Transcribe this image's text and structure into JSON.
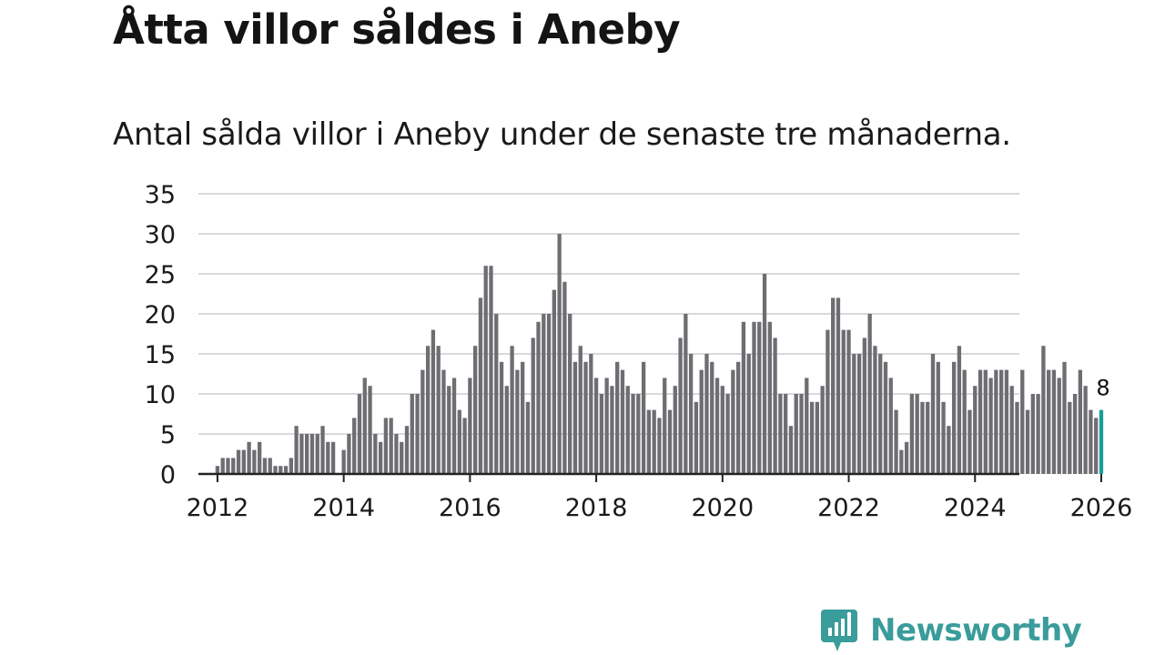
{
  "title": "Åtta villor såldes i Aneby",
  "subtitle": "Antal sålda villor i Aneby under de senaste tre månaderna.",
  "brand": {
    "name": "Newsworthy",
    "icon": "newsworthy-logo-icon"
  },
  "colors": {
    "bar": "#6e6d72",
    "highlight": "#1a9c98",
    "grid": "#d9d9d9",
    "axis": "#222222",
    "brand": "#3a9c9b"
  },
  "chart_data": {
    "type": "bar",
    "title": "Åtta villor såldes i Aneby",
    "xlabel": "",
    "ylabel": "",
    "ylim": [
      0,
      35
    ],
    "yticks": [
      "0",
      "5",
      "10",
      "15",
      "20",
      "25",
      "30",
      "35"
    ],
    "xticks": [
      "2012",
      "2014",
      "2016",
      "2018",
      "2020",
      "2022",
      "2024",
      "2026"
    ],
    "x_start": "2011-12",
    "grid": true,
    "highlight_label": "8",
    "values": [
      0,
      1,
      2,
      2,
      2,
      3,
      3,
      4,
      3,
      4,
      2,
      2,
      1,
      1,
      1,
      2,
      6,
      5,
      5,
      5,
      5,
      6,
      4,
      4,
      0,
      3,
      5,
      7,
      10,
      12,
      11,
      5,
      4,
      7,
      7,
      5,
      4,
      6,
      10,
      10,
      13,
      16,
      18,
      16,
      13,
      11,
      12,
      8,
      7,
      12,
      16,
      22,
      26,
      26,
      20,
      14,
      11,
      16,
      13,
      14,
      9,
      17,
      19,
      20,
      20,
      23,
      30,
      24,
      20,
      14,
      16,
      14,
      15,
      12,
      10,
      12,
      11,
      14,
      13,
      11,
      10,
      10,
      14,
      8,
      8,
      7,
      12,
      8,
      11,
      17,
      20,
      15,
      9,
      13,
      15,
      14,
      12,
      11,
      10,
      13,
      14,
      19,
      15,
      19,
      19,
      25,
      19,
      17,
      10,
      10,
      6,
      10,
      10,
      12,
      9,
      9,
      11,
      18,
      22,
      22,
      18,
      18,
      15,
      15,
      17,
      20,
      16,
      15,
      14,
      12,
      8,
      3,
      4,
      10,
      10,
      9,
      9,
      15,
      14,
      9,
      6,
      14,
      16,
      13,
      8,
      11,
      13,
      13,
      12,
      13,
      13,
      13,
      11,
      9,
      13,
      8,
      10,
      10,
      16,
      13,
      13,
      12,
      14,
      9,
      10,
      13,
      11,
      8,
      7,
      8
    ]
  }
}
